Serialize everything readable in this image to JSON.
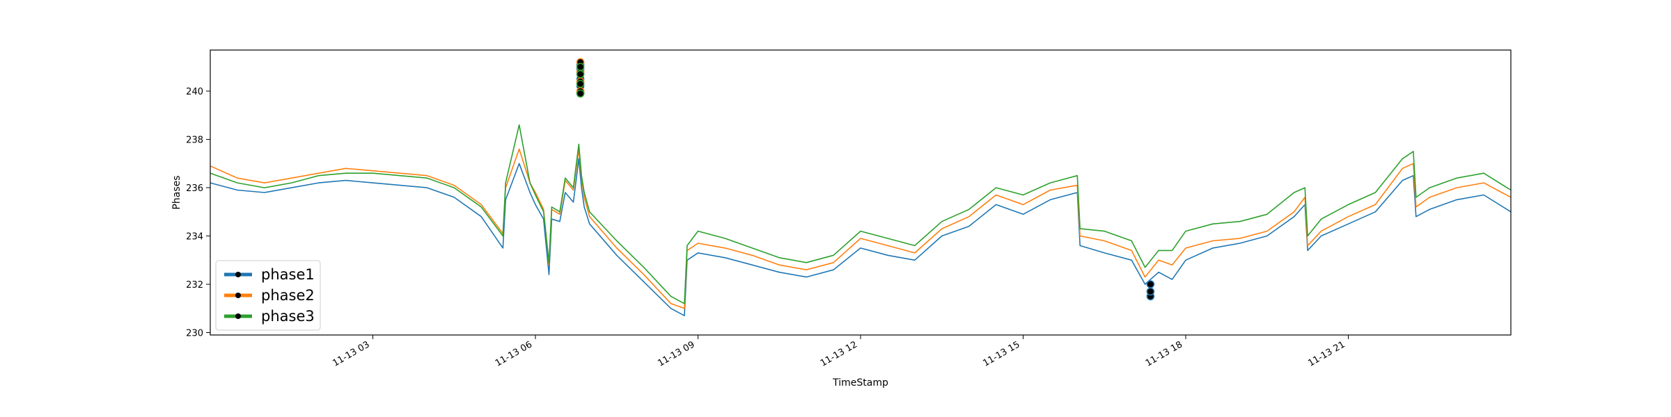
{
  "chart_data": {
    "type": "line",
    "title": "",
    "xlabel": "TimeStamp",
    "ylabel": "Phases",
    "x_range": [
      "11-13 00:00",
      "24:00"
    ],
    "ylim": [
      229.9,
      241.7
    ],
    "yticks": [
      230,
      232,
      234,
      236,
      238,
      240
    ],
    "xticks": [
      {
        "hour": 3,
        "label": "11-13 03"
      },
      {
        "hour": 6,
        "label": "11-13 06"
      },
      {
        "hour": 9,
        "label": "11-13 09"
      },
      {
        "hour": 12,
        "label": "11-13 12"
      },
      {
        "hour": 15,
        "label": "11-13 15"
      },
      {
        "hour": 18,
        "label": "11-13 18"
      },
      {
        "hour": 21,
        "label": "11-13 21"
      }
    ],
    "grid": false,
    "legend_position": "lower-left",
    "x_unit": "hour of 11-13",
    "series": [
      {
        "name": "phase1",
        "color": "#1f77b4",
        "x": [
          0.0,
          0.5,
          1.0,
          1.5,
          2.0,
          2.5,
          3.0,
          3.5,
          4.0,
          4.5,
          5.0,
          5.4,
          5.45,
          5.7,
          5.9,
          6.0,
          6.15,
          6.25,
          6.3,
          6.45,
          6.55,
          6.7,
          6.8,
          6.85,
          6.9,
          7.0,
          7.5,
          8.0,
          8.5,
          8.75,
          8.8,
          9.0,
          9.5,
          10.0,
          10.5,
          11.0,
          11.5,
          12.0,
          12.5,
          13.0,
          13.5,
          14.0,
          14.5,
          15.0,
          15.5,
          16.0,
          16.05,
          16.5,
          17.0,
          17.25,
          17.5,
          17.75,
          18.0,
          18.5,
          19.0,
          19.5,
          20.0,
          20.2,
          20.25,
          20.5,
          21.0,
          21.5,
          22.0,
          22.2,
          22.25,
          22.5,
          23.0,
          23.5,
          24.0
        ],
        "y": [
          236.2,
          235.9,
          235.8,
          236.0,
          236.2,
          236.3,
          236.2,
          236.1,
          236.0,
          235.6,
          234.8,
          233.5,
          235.5,
          237.0,
          235.8,
          235.3,
          234.7,
          232.4,
          234.7,
          234.6,
          235.8,
          235.4,
          237.2,
          236.0,
          235.2,
          234.5,
          233.2,
          232.1,
          231.0,
          230.7,
          233.0,
          233.3,
          233.1,
          232.8,
          232.5,
          232.3,
          232.6,
          233.5,
          233.2,
          233.0,
          234.0,
          234.4,
          235.3,
          234.9,
          235.5,
          235.8,
          233.6,
          233.3,
          233.0,
          232.0,
          232.5,
          232.2,
          233.0,
          233.5,
          233.7,
          234.0,
          234.8,
          235.3,
          233.4,
          234.0,
          234.5,
          235.0,
          236.3,
          236.5,
          234.8,
          235.1,
          235.5,
          235.7,
          235.0
        ]
      },
      {
        "name": "phase2",
        "color": "#ff7f0e",
        "x": [
          0.0,
          0.5,
          1.0,
          1.5,
          2.0,
          2.5,
          3.0,
          3.5,
          4.0,
          4.5,
          5.0,
          5.4,
          5.45,
          5.7,
          5.9,
          6.0,
          6.15,
          6.25,
          6.3,
          6.45,
          6.55,
          6.7,
          6.8,
          6.85,
          6.9,
          7.0,
          7.5,
          8.0,
          8.5,
          8.75,
          8.8,
          9.0,
          9.5,
          10.0,
          10.5,
          11.0,
          11.5,
          12.0,
          12.5,
          13.0,
          13.5,
          14.0,
          14.5,
          15.0,
          15.5,
          16.0,
          16.05,
          16.5,
          17.0,
          17.25,
          17.5,
          17.75,
          18.0,
          18.5,
          19.0,
          19.5,
          20.0,
          20.2,
          20.25,
          20.5,
          21.0,
          21.5,
          22.0,
          22.2,
          22.25,
          22.5,
          23.0,
          23.5,
          24.0
        ],
        "y": [
          236.9,
          236.4,
          236.2,
          236.4,
          236.6,
          236.8,
          236.7,
          236.6,
          236.5,
          236.1,
          235.3,
          234.1,
          236.0,
          237.6,
          236.2,
          235.8,
          235.1,
          232.8,
          235.1,
          234.9,
          236.3,
          235.9,
          237.6,
          236.4,
          235.6,
          234.8,
          233.5,
          232.4,
          231.2,
          231.0,
          233.4,
          233.7,
          233.5,
          233.2,
          232.8,
          232.6,
          232.9,
          233.9,
          233.6,
          233.3,
          234.3,
          234.8,
          235.7,
          235.3,
          235.9,
          236.1,
          234.0,
          233.8,
          233.4,
          232.3,
          233.0,
          232.8,
          233.5,
          233.8,
          233.9,
          234.2,
          235.0,
          235.6,
          233.6,
          234.2,
          234.8,
          235.3,
          236.8,
          237.0,
          235.2,
          235.6,
          236.0,
          236.2,
          235.6
        ]
      },
      {
        "name": "phase3",
        "color": "#2ca02c",
        "x": [
          0.0,
          0.5,
          1.0,
          1.5,
          2.0,
          2.5,
          3.0,
          3.5,
          4.0,
          4.5,
          5.0,
          5.4,
          5.45,
          5.7,
          5.9,
          6.0,
          6.15,
          6.25,
          6.3,
          6.45,
          6.55,
          6.7,
          6.8,
          6.85,
          6.9,
          7.0,
          7.5,
          8.0,
          8.5,
          8.75,
          8.8,
          9.0,
          9.5,
          10.0,
          10.5,
          11.0,
          11.5,
          12.0,
          12.5,
          13.0,
          13.5,
          14.0,
          14.5,
          15.0,
          15.5,
          16.0,
          16.05,
          16.5,
          17.0,
          17.25,
          17.5,
          17.75,
          18.0,
          18.5,
          19.0,
          19.5,
          20.0,
          20.2,
          20.25,
          20.5,
          21.0,
          21.5,
          22.0,
          22.2,
          22.25,
          22.5,
          23.0,
          23.5,
          24.0
        ],
        "y": [
          236.6,
          236.2,
          236.0,
          236.2,
          236.5,
          236.6,
          236.6,
          236.5,
          236.4,
          236.0,
          235.2,
          234.0,
          236.2,
          238.6,
          236.2,
          235.7,
          235.0,
          232.9,
          235.2,
          235.0,
          236.4,
          236.0,
          237.8,
          236.5,
          235.8,
          235.0,
          233.8,
          232.7,
          231.5,
          231.2,
          233.6,
          234.2,
          233.9,
          233.5,
          233.1,
          232.9,
          233.2,
          234.2,
          233.9,
          233.6,
          234.6,
          235.1,
          236.0,
          235.7,
          236.2,
          236.5,
          234.3,
          234.2,
          233.8,
          232.7,
          233.4,
          233.4,
          234.2,
          234.5,
          234.6,
          234.9,
          235.8,
          236.0,
          234.0,
          234.7,
          235.3,
          235.8,
          237.2,
          237.5,
          235.6,
          236.0,
          236.4,
          236.6,
          235.9
        ]
      }
    ],
    "anomalies": [
      {
        "series": "phase1",
        "points": [
          [
            6.83,
            239.9
          ],
          [
            6.83,
            240.2
          ],
          [
            6.83,
            240.5
          ],
          [
            6.83,
            240.9
          ],
          [
            6.83,
            241.1
          ],
          [
            17.35,
            231.5
          ],
          [
            17.35,
            231.7
          ],
          [
            17.35,
            232.0
          ]
        ]
      },
      {
        "series": "phase2",
        "points": [
          [
            6.83,
            240.0
          ],
          [
            6.83,
            240.4
          ],
          [
            6.83,
            240.8
          ],
          [
            6.83,
            241.2
          ]
        ]
      },
      {
        "series": "phase3",
        "points": [
          [
            6.83,
            239.9
          ],
          [
            6.83,
            240.3
          ],
          [
            6.83,
            240.7
          ],
          [
            6.83,
            241.0
          ]
        ]
      }
    ]
  }
}
